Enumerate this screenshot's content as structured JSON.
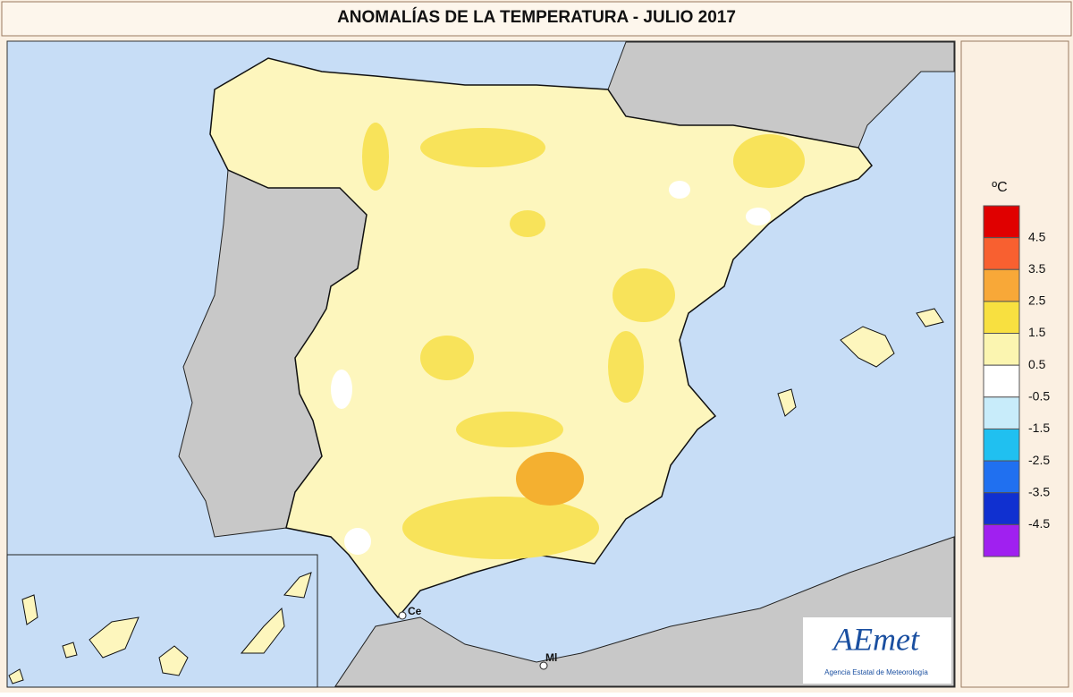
{
  "title": "ANOMALÍAS DE LA TEMPERATURA - JULIO 2017",
  "legend": {
    "unit": "ºC",
    "labels": [
      "4.5",
      "3.5",
      "2.5",
      "1.5",
      "0.5",
      "-0.5",
      "-1.5",
      "-2.5",
      "-3.5",
      "-4.5"
    ],
    "colors": [
      "#e00000",
      "#f86030",
      "#f8a838",
      "#f8e040",
      "#fbf5b0",
      "#ffffff",
      "#c8ecfa",
      "#20c0f0",
      "#2070f0",
      "#1030d0",
      "#a020f0"
    ]
  },
  "map": {
    "labels": [
      "Ce",
      "Ml"
    ]
  },
  "logo": {
    "name": "AEmet",
    "subtitle": "Agencia Estatal de Meteorología"
  }
}
